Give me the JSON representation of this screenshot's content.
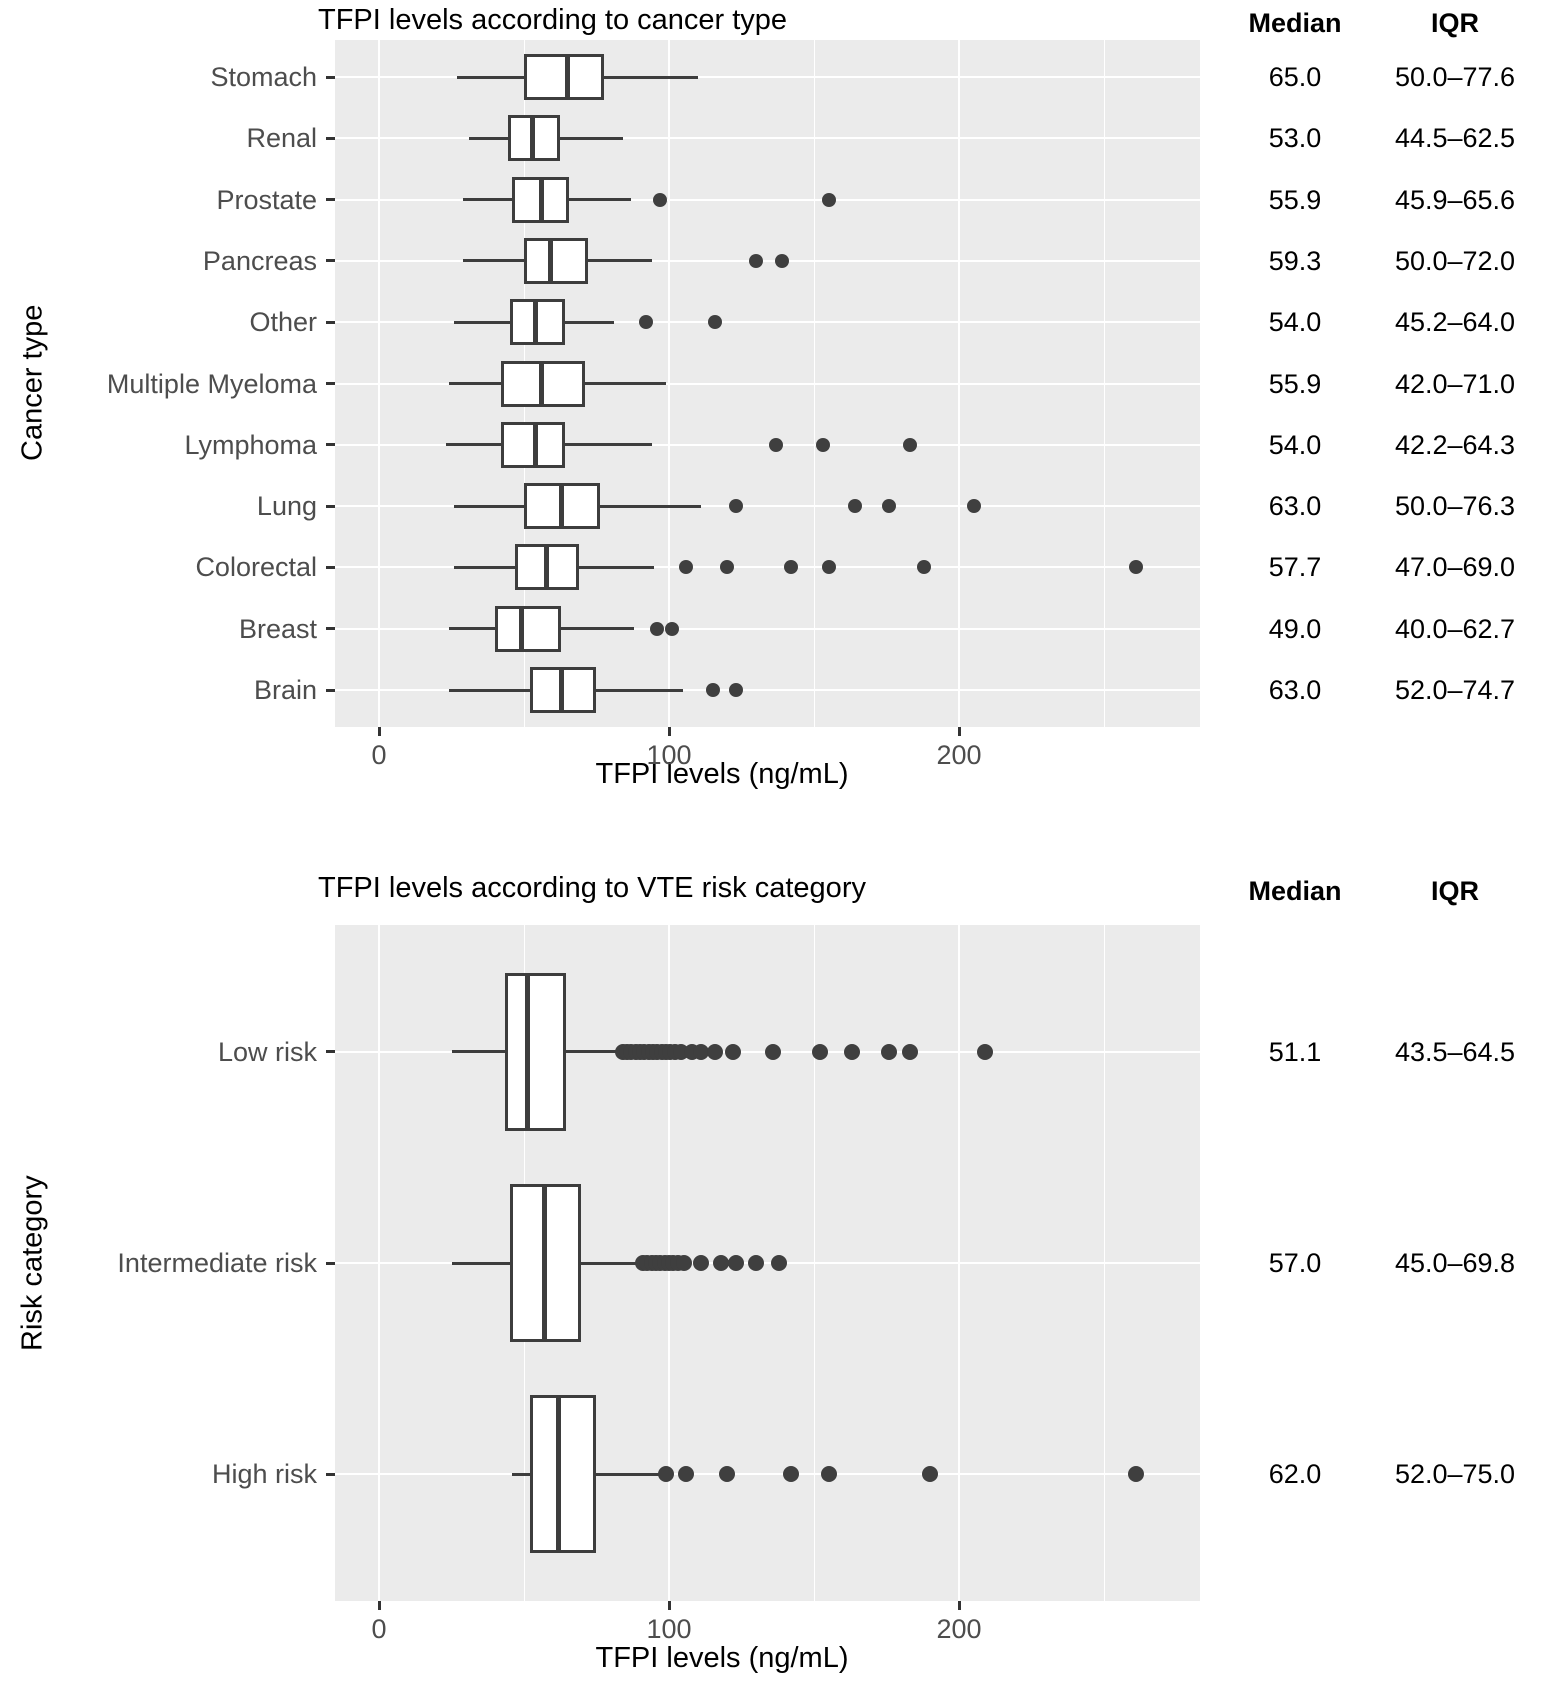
{
  "styles": {
    "panel_bg": "#EBEBEB",
    "grid_color": "#FFFFFF",
    "box_stroke": "#3D3D3D",
    "outlier_color": "#3F3F3F",
    "tick_label_color": "#4D4D4D",
    "text_color": "#000000"
  },
  "chart_data": [
    {
      "type": "boxplot",
      "orientation": "horizontal",
      "title": "TFPI levels according to cancer type",
      "xlabel": "TFPI levels (ng/mL)",
      "ylabel": "Cancer type",
      "median_header": "Median",
      "iqr_header": "IQR",
      "x_ticks": [
        "0",
        "100",
        "200"
      ],
      "x_tick_values": [
        0,
        100,
        200
      ],
      "grid_major": [
        0,
        100,
        200
      ],
      "grid_minor": [
        50,
        150,
        250
      ],
      "x_range": [
        -15,
        283
      ],
      "grid": "on",
      "legend": "none",
      "rows": [
        {
          "label": "Stomach",
          "median": 65.0,
          "q1": 50.0,
          "q3": 77.6,
          "whisker_low": 27,
          "whisker_high": 110,
          "outliers": [],
          "median_text": "65.0",
          "iqr_text": "50.0–77.6"
        },
        {
          "label": "Renal",
          "median": 53.0,
          "q1": 44.5,
          "q3": 62.5,
          "whisker_low": 31,
          "whisker_high": 84,
          "outliers": [],
          "median_text": "53.0",
          "iqr_text": "44.5–62.5"
        },
        {
          "label": "Prostate",
          "median": 55.9,
          "q1": 45.9,
          "q3": 65.6,
          "whisker_low": 29,
          "whisker_high": 87,
          "outliers": [
            97,
            155
          ],
          "median_text": "55.9",
          "iqr_text": "45.9–65.6"
        },
        {
          "label": "Pancreas",
          "median": 59.3,
          "q1": 50.0,
          "q3": 72.0,
          "whisker_low": 29,
          "whisker_high": 94,
          "outliers": [
            130,
            139
          ],
          "median_text": "59.3",
          "iqr_text": "50.0–72.0"
        },
        {
          "label": "Other",
          "median": 54.0,
          "q1": 45.2,
          "q3": 64.0,
          "whisker_low": 26,
          "whisker_high": 81,
          "outliers": [
            92,
            116
          ],
          "median_text": "54.0",
          "iqr_text": "45.2–64.0"
        },
        {
          "label": "Multiple Myeloma",
          "median": 55.9,
          "q1": 42.0,
          "q3": 71.0,
          "whisker_low": 24,
          "whisker_high": 99,
          "outliers": [],
          "median_text": "55.9",
          "iqr_text": "42.0–71.0"
        },
        {
          "label": "Lymphoma",
          "median": 54.0,
          "q1": 42.2,
          "q3": 64.3,
          "whisker_low": 23,
          "whisker_high": 94,
          "outliers": [
            137,
            153,
            183
          ],
          "median_text": "54.0",
          "iqr_text": "42.2–64.3"
        },
        {
          "label": "Lung",
          "median": 63.0,
          "q1": 50.0,
          "q3": 76.3,
          "whisker_low": 26,
          "whisker_high": 111,
          "outliers": [
            123,
            164,
            176,
            205
          ],
          "median_text": "63.0",
          "iqr_text": "50.0–76.3"
        },
        {
          "label": "Colorectal",
          "median": 57.7,
          "q1": 47.0,
          "q3": 69.0,
          "whisker_low": 26,
          "whisker_high": 95,
          "outliers": [
            106,
            120,
            142,
            155,
            188,
            261
          ],
          "median_text": "57.7",
          "iqr_text": "47.0–69.0"
        },
        {
          "label": "Breast",
          "median": 49.0,
          "q1": 40.0,
          "q3": 62.7,
          "whisker_low": 24,
          "whisker_high": 88,
          "outliers": [
            96,
            101
          ],
          "median_text": "49.0",
          "iqr_text": "40.0–62.7"
        },
        {
          "label": "Brain",
          "median": 63.0,
          "q1": 52.0,
          "q3": 74.7,
          "whisker_low": 24,
          "whisker_high": 105,
          "outliers": [
            115,
            123
          ],
          "median_text": "63.0",
          "iqr_text": "52.0–74.7"
        }
      ]
    },
    {
      "type": "boxplot",
      "orientation": "horizontal",
      "title": "TFPI levels according to VTE risk category",
      "xlabel": "TFPI levels (ng/mL)",
      "ylabel": "Risk category",
      "median_header": "Median",
      "iqr_header": "IQR",
      "x_ticks": [
        "0",
        "100",
        "200"
      ],
      "x_tick_values": [
        0,
        100,
        200
      ],
      "grid_major": [
        0,
        100,
        200
      ],
      "grid_minor": [
        50,
        150,
        250
      ],
      "x_range": [
        -15,
        283
      ],
      "grid": "on",
      "legend": "none",
      "rows": [
        {
          "label": "Low risk",
          "median": 51.1,
          "q1": 43.5,
          "q3": 64.5,
          "whisker_low": 25,
          "whisker_high": 82,
          "outliers": [
            84,
            85.5,
            87,
            88.5,
            90,
            91.5,
            93,
            94.5,
            96,
            97.5,
            99,
            100.5,
            102,
            104,
            108,
            111,
            116,
            122,
            136,
            152,
            163,
            176,
            183,
            209
          ],
          "median_text": "51.1",
          "iqr_text": "43.5–64.5"
        },
        {
          "label": "Intermediate risk",
          "median": 57.0,
          "q1": 45.0,
          "q3": 69.8,
          "whisker_low": 25,
          "whisker_high": 89,
          "outliers": [
            91,
            92.5,
            94,
            95.5,
            97,
            98.5,
            100,
            101.5,
            103,
            105,
            111,
            118,
            123,
            130,
            138
          ],
          "median_text": "57.0",
          "iqr_text": "45.0–69.8"
        },
        {
          "label": "High risk",
          "median": 62.0,
          "q1": 52.0,
          "q3": 75.0,
          "whisker_low": 46,
          "whisker_high": 97,
          "outliers": [
            99,
            106,
            120,
            142,
            155,
            190,
            261
          ],
          "median_text": "62.0",
          "iqr_text": "52.0–75.0"
        }
      ]
    }
  ]
}
